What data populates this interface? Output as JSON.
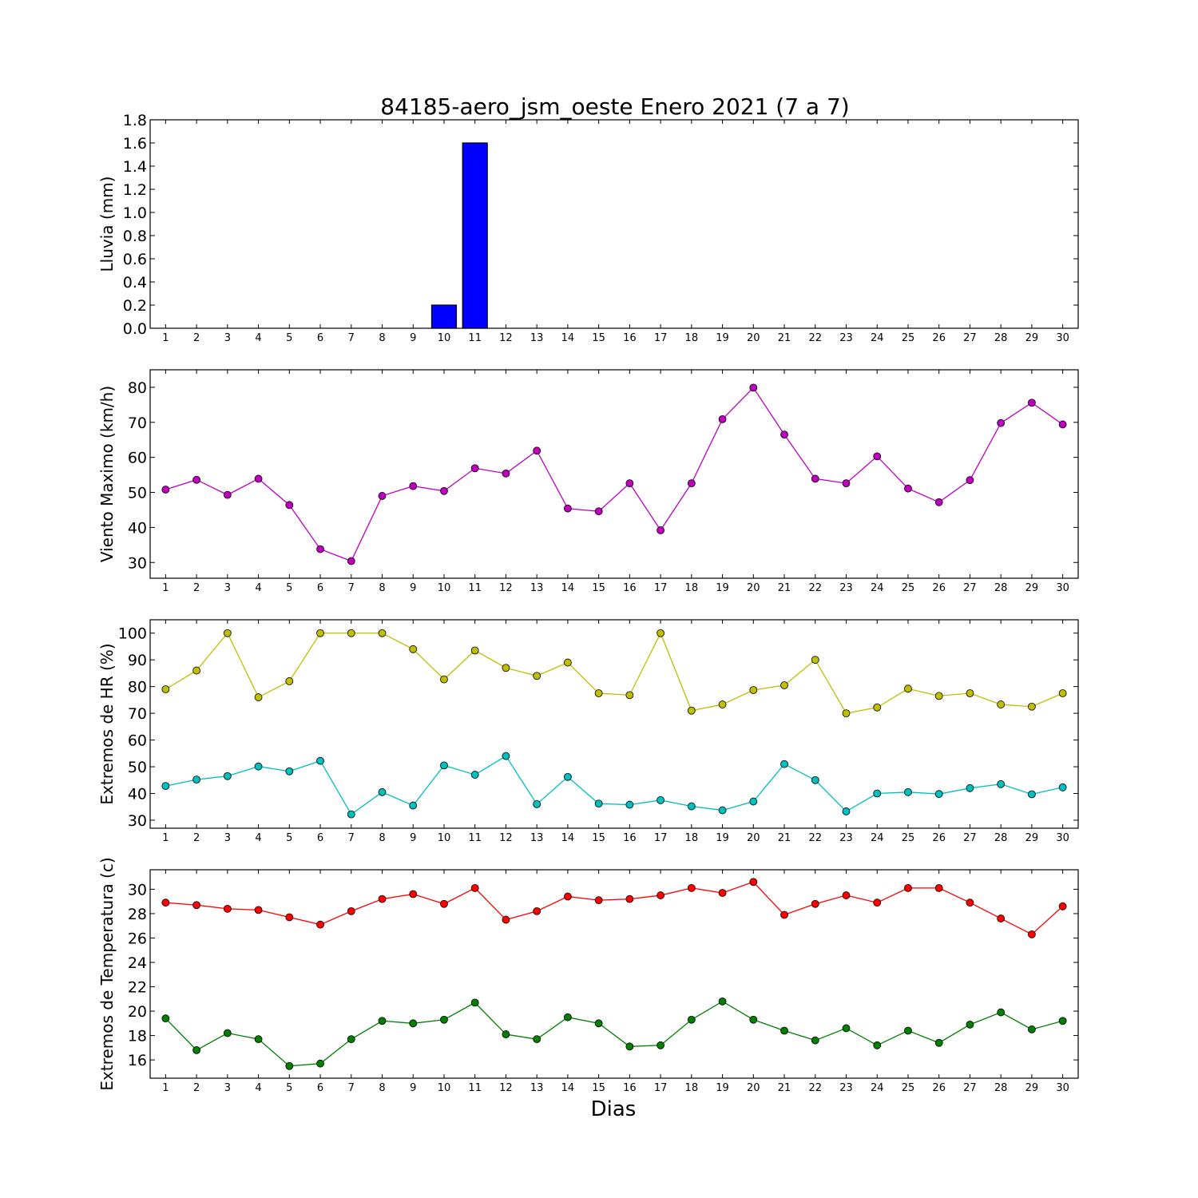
{
  "figure": {
    "title": "84185-aero_jsm_oeste Enero 2021  (7 a 7)",
    "xlabel": "Dias"
  },
  "chart_data": [
    {
      "type": "bar",
      "ylabel": "Lluvia (mm)",
      "ylim": [
        0,
        1.8
      ],
      "yticks": [
        0.0,
        0.2,
        0.4,
        0.6,
        0.8,
        1.0,
        1.2,
        1.4,
        1.6,
        1.8
      ],
      "ytick_decimals": 1,
      "xlim": [
        0.5,
        30.5
      ],
      "x": [
        1,
        2,
        3,
        4,
        5,
        6,
        7,
        8,
        9,
        10,
        11,
        12,
        13,
        14,
        15,
        16,
        17,
        18,
        19,
        20,
        21,
        22,
        23,
        24,
        25,
        26,
        27,
        28,
        29,
        30
      ],
      "series": [
        {
          "color": "#0000ff",
          "values": [
            0,
            0,
            0,
            0,
            0,
            0,
            0,
            0,
            0,
            0.2,
            1.6,
            0,
            0,
            0,
            0,
            0,
            0,
            0,
            0,
            0,
            0,
            0,
            0,
            0,
            0,
            0,
            0,
            0,
            0,
            0
          ]
        }
      ],
      "grid": false
    },
    {
      "type": "line",
      "ylabel": "Viento Maximo (km/h)",
      "ylim": [
        25.5,
        85
      ],
      "yticks": [
        30,
        40,
        50,
        60,
        70,
        80
      ],
      "ytick_decimals": 0,
      "xlim": [
        0.5,
        30.5
      ],
      "x": [
        1,
        2,
        3,
        4,
        5,
        6,
        7,
        8,
        9,
        10,
        11,
        12,
        13,
        14,
        15,
        16,
        17,
        18,
        19,
        20,
        21,
        22,
        23,
        24,
        25,
        26,
        27,
        28,
        29,
        30
      ],
      "series": [
        {
          "color": "#bf00bf",
          "values": [
            50.8,
            53.6,
            49.3,
            53.9,
            46.4,
            33.8,
            30.4,
            49.0,
            51.8,
            50.4,
            56.9,
            55.4,
            61.9,
            45.4,
            44.6,
            52.6,
            39.2,
            52.6,
            70.9,
            79.9,
            66.5,
            53.9,
            52.6,
            60.3,
            51.1,
            47.2,
            53.5,
            69.8,
            75.6,
            69.4
          ]
        }
      ],
      "grid": false
    },
    {
      "type": "line",
      "ylabel": "Extremos de HR (%)",
      "ylim": [
        27,
        105
      ],
      "yticks": [
        30,
        40,
        50,
        60,
        70,
        80,
        90,
        100
      ],
      "ytick_decimals": 0,
      "xlim": [
        0.5,
        30.5
      ],
      "x": [
        1,
        2,
        3,
        4,
        5,
        6,
        7,
        8,
        9,
        10,
        11,
        12,
        13,
        14,
        15,
        16,
        17,
        18,
        19,
        20,
        21,
        22,
        23,
        24,
        25,
        26,
        27,
        28,
        29,
        30
      ],
      "series": [
        {
          "color": "#bfbf00",
          "values": [
            79,
            86,
            100,
            76,
            82,
            100,
            100,
            100,
            94,
            82.7,
            93.5,
            87,
            84,
            89,
            77.5,
            76.8,
            100,
            71,
            73.3,
            78.7,
            80.5,
            90,
            70,
            72.2,
            79.2,
            76.5,
            77.5,
            73.3,
            72.5,
            77.5
          ]
        },
        {
          "color": "#00bfbf",
          "values": [
            42.8,
            45.2,
            46.5,
            50.1,
            48.3,
            52.2,
            32.2,
            40.5,
            35.5,
            50.5,
            47,
            54,
            36,
            46.2,
            36.2,
            35.8,
            37.5,
            35.2,
            33.7,
            37,
            51,
            45,
            33.3,
            40,
            40.5,
            39.8,
            42,
            43.5,
            39.7,
            42.3
          ]
        }
      ],
      "grid": false
    },
    {
      "type": "line",
      "ylabel": "Extremos de Temperatura (c)",
      "ylim": [
        14.5,
        31.6
      ],
      "yticks": [
        16,
        18,
        20,
        22,
        24,
        26,
        28,
        30
      ],
      "ytick_decimals": 0,
      "xlim": [
        0.5,
        30.5
      ],
      "x": [
        1,
        2,
        3,
        4,
        5,
        6,
        7,
        8,
        9,
        10,
        11,
        12,
        13,
        14,
        15,
        16,
        17,
        18,
        19,
        20,
        21,
        22,
        23,
        24,
        25,
        26,
        27,
        28,
        29,
        30
      ],
      "series": [
        {
          "color": "#ff0000",
          "values": [
            28.9,
            28.7,
            28.4,
            28.3,
            27.7,
            27.1,
            28.2,
            29.2,
            29.6,
            28.8,
            30.1,
            27.5,
            28.2,
            29.4,
            29.1,
            29.2,
            29.5,
            30.1,
            29.7,
            30.6,
            27.9,
            28.8,
            29.5,
            28.9,
            30.1,
            30.1,
            28.9,
            27.6,
            26.3,
            28.6
          ]
        },
        {
          "color": "#007f00",
          "values": [
            19.4,
            16.8,
            18.2,
            17.7,
            15.5,
            15.7,
            17.7,
            19.2,
            19.0,
            19.3,
            20.7,
            18.1,
            17.7,
            19.5,
            19.0,
            17.1,
            17.2,
            19.3,
            20.8,
            19.3,
            18.4,
            17.6,
            18.6,
            17.2,
            18.4,
            17.4,
            18.9,
            19.9,
            18.5,
            19.2
          ]
        }
      ],
      "grid": false
    }
  ]
}
